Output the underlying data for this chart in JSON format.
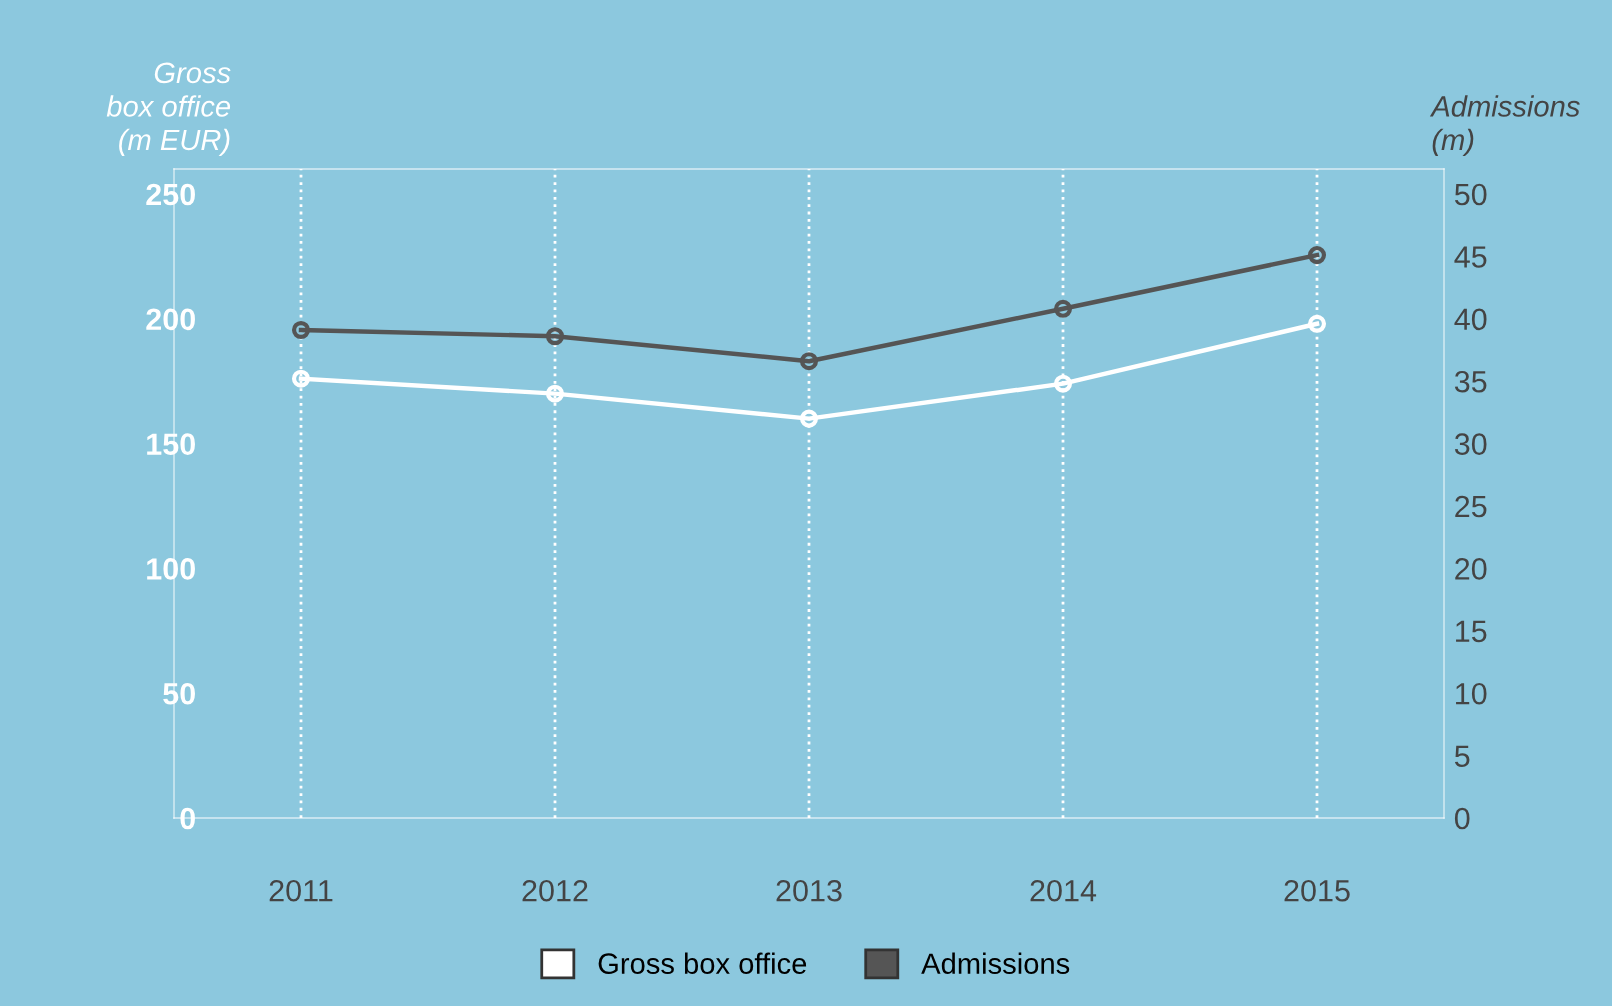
{
  "chart_data": {
    "type": "line",
    "ylabel": "Gross\nbox office\n(m EUR)",
    "y2label": "Admissions\n(m)",
    "categories": [
      "2011",
      "2012",
      "2013",
      "2014",
      "2015"
    ],
    "series": [
      {
        "name": "Gross box office",
        "color": "#ffffff",
        "values": [
          176,
          170,
          160,
          174,
          198
        ]
      },
      {
        "name": "Admissions",
        "color": "#555555",
        "axis": "y2",
        "values": [
          39.1,
          38.6,
          36.6,
          40.8,
          45.1
        ]
      }
    ],
    "ylim": [
      0,
      260
    ],
    "yticks": [
      0,
      50,
      100,
      150,
      200,
      250
    ],
    "y2lim": [
      0,
      52
    ],
    "y2ticks": [
      0,
      5,
      10,
      15,
      20,
      25,
      30,
      35,
      40,
      45,
      50
    ],
    "grid": "x",
    "marker": "circle",
    "line_style": "solid",
    "legend": "bottom"
  }
}
